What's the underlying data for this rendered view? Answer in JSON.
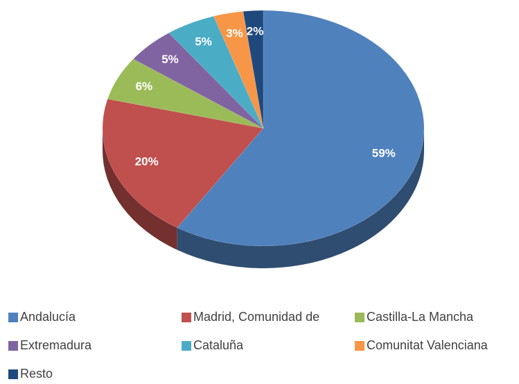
{
  "chart_data": {
    "type": "pie",
    "categories": [
      "Andalucía",
      "Madrid, Comunidad de",
      "Castilla-La Mancha",
      "Extremadura",
      "Cataluña",
      "Comunitat Valenciana",
      "Resto"
    ],
    "values": [
      59,
      20,
      6,
      5,
      5,
      3,
      2
    ],
    "value_labels": [
      "59%",
      "20%",
      "6%",
      "5%",
      "5%",
      "3%",
      "2%"
    ],
    "colors": [
      "#4f81bd",
      "#c0504d",
      "#9bbb59",
      "#8064a2",
      "#4bacc6",
      "#f79646",
      "#1f497d"
    ],
    "legend": "bottom"
  }
}
